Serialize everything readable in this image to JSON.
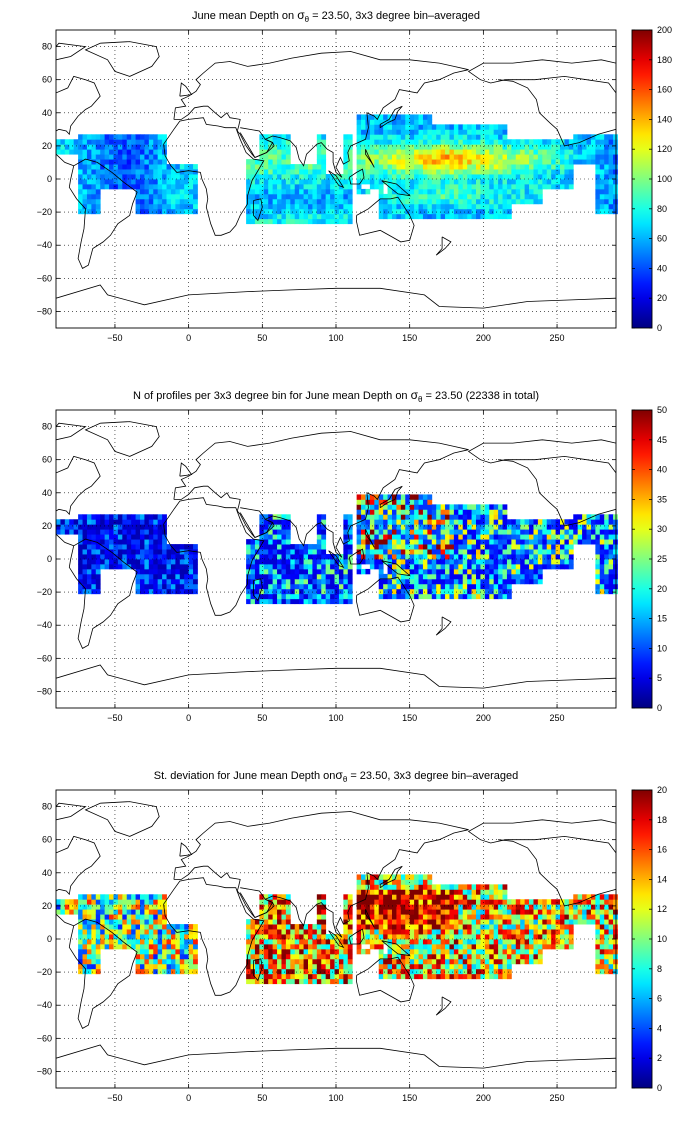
{
  "figure": {
    "colors": {
      "colormap": "jet",
      "land_outline": "#000000",
      "grid": "#000000",
      "background": "#ffffff"
    }
  },
  "chart_data": [
    {
      "type": "heatmap",
      "title_prefix": "June mean Depth on ",
      "title_symbol": "σ",
      "title_subscript": "θ",
      "title_suffix": " = 23.50, 3x3 degree bin–averaged",
      "xlim": [
        -90,
        290
      ],
      "ylim": [
        -90,
        90
      ],
      "xticks": [
        -50,
        0,
        50,
        100,
        150,
        200,
        250
      ],
      "yticks": [
        -80,
        -60,
        -40,
        -20,
        0,
        20,
        40,
        60,
        80
      ],
      "grid": true,
      "colorbar": {
        "min": 0,
        "max": 200,
        "ticks": [
          0,
          20,
          40,
          60,
          80,
          100,
          120,
          140,
          160,
          180,
          200
        ]
      },
      "field": "mean_depth",
      "bin_size_deg": 3
    },
    {
      "type": "heatmap",
      "title_prefix": "N of profiles per 3x3 degree bin for June mean Depth on ",
      "title_symbol": "σ",
      "title_subscript": "θ",
      "title_suffix": " = 23.50 (22338 in total)",
      "xlim": [
        -90,
        290
      ],
      "ylim": [
        -90,
        90
      ],
      "xticks": [
        -50,
        0,
        50,
        100,
        150,
        200,
        250
      ],
      "yticks": [
        -80,
        -60,
        -40,
        -20,
        0,
        20,
        40,
        60,
        80
      ],
      "grid": true,
      "colorbar": {
        "min": 0,
        "max": 50,
        "ticks": [
          0,
          5,
          10,
          15,
          20,
          25,
          30,
          35,
          40,
          45,
          50
        ]
      },
      "field": "profile_count",
      "bin_size_deg": 3
    },
    {
      "type": "heatmap",
      "title_prefix": "St. deviation for June mean Depth on",
      "title_symbol": "σ",
      "title_subscript": "θ",
      "title_suffix": " = 23.50, 3x3 degree bin–averaged",
      "xlim": [
        -90,
        290
      ],
      "ylim": [
        -90,
        90
      ],
      "xticks": [
        -50,
        0,
        50,
        100,
        150,
        200,
        250
      ],
      "yticks": [
        -80,
        -60,
        -40,
        -20,
        0,
        20,
        40,
        60,
        80
      ],
      "grid": true,
      "colorbar": {
        "min": 0,
        "max": 20,
        "ticks": [
          0,
          2,
          4,
          6,
          8,
          10,
          12,
          14,
          16,
          18,
          20
        ]
      },
      "field": "std_depth",
      "bin_size_deg": 3
    }
  ]
}
